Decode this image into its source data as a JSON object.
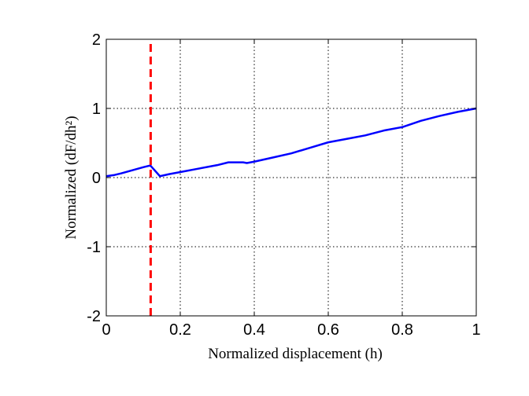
{
  "chart_data": {
    "type": "line",
    "title": "",
    "xlabel": "Normalized displacement (h)",
    "ylabel": "Normalized (dF/dh²)",
    "xlim": [
      0,
      1
    ],
    "ylim": [
      -2,
      2
    ],
    "x_ticks": [
      "0",
      "0.2",
      "0.4",
      "0.6",
      "0.8",
      "1"
    ],
    "y_ticks": [
      "-2",
      "-1",
      "0",
      "1",
      "2"
    ],
    "grid": true,
    "series": [
      {
        "color": "#0000ff",
        "style": "solid",
        "x": [
          0,
          0.02,
          0.04,
          0.06,
          0.08,
          0.1,
          0.115,
          0.12,
          0.145,
          0.17,
          0.2,
          0.25,
          0.3,
          0.33,
          0.35,
          0.37,
          0.38,
          0.4,
          0.45,
          0.5,
          0.55,
          0.6,
          0.65,
          0.7,
          0.75,
          0.8,
          0.85,
          0.9,
          0.95,
          1.0
        ],
        "y": [
          0.02,
          0.035,
          0.06,
          0.09,
          0.12,
          0.15,
          0.17,
          0.17,
          0.02,
          0.05,
          0.08,
          0.13,
          0.18,
          0.22,
          0.22,
          0.22,
          0.21,
          0.23,
          0.29,
          0.35,
          0.43,
          0.51,
          0.56,
          0.61,
          0.68,
          0.73,
          0.82,
          0.89,
          0.95,
          1.0
        ]
      },
      {
        "color": "#ff0000",
        "style": "dashed",
        "x": [
          0.12,
          0.12
        ],
        "y": [
          -2,
          2
        ]
      }
    ]
  }
}
